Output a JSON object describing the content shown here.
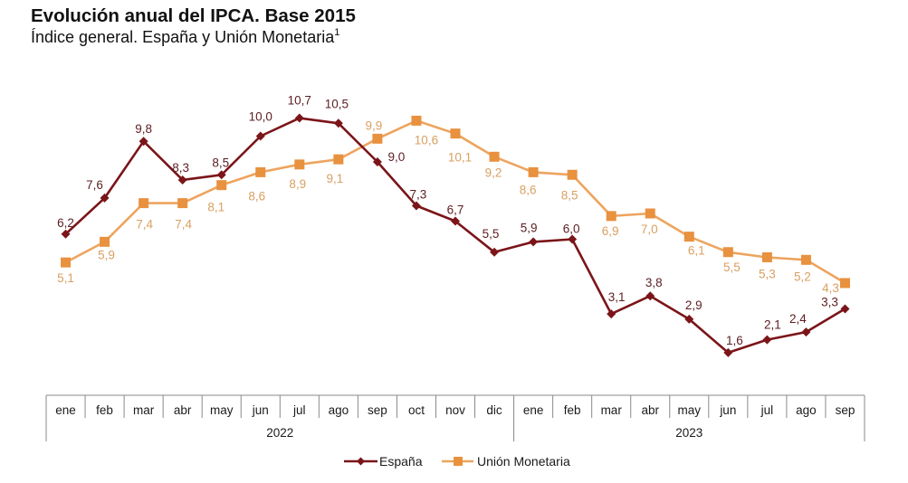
{
  "title": "Evolución anual del IPCA. Base 2015",
  "subtitle": "Índice general. España y Unión Monetaria",
  "subtitle_footnote": "1",
  "chart_data": {
    "type": "line",
    "title": "Evolución anual del IPCA. Base 2015",
    "subtitle": "Índice general. España y Unión Monetaria¹",
    "xlabel": "",
    "ylabel": "",
    "y_axis_visible": false,
    "grid": false,
    "legend": "bottom-center",
    "categories": [
      "ene",
      "feb",
      "mar",
      "abr",
      "may",
      "jun",
      "jul",
      "ago",
      "sep",
      "oct",
      "nov",
      "dic",
      "ene",
      "feb",
      "mar",
      "abr",
      "may",
      "jun",
      "jul",
      "ago",
      "sep"
    ],
    "years": [
      {
        "label": "2022",
        "months": 12
      },
      {
        "label": "2023",
        "months": 9
      }
    ],
    "series": [
      {
        "name": "España",
        "marker": "diamond",
        "color": "#7B1519",
        "label_color": "#5B1E23",
        "values": [
          6.2,
          7.6,
          9.8,
          8.3,
          8.5,
          10.0,
          10.7,
          10.5,
          9.0,
          7.3,
          6.7,
          5.5,
          5.9,
          6.0,
          3.1,
          3.8,
          2.9,
          1.6,
          2.1,
          2.4,
          3.3
        ],
        "labels": [
          "6,2",
          "7,6",
          "9,8",
          "8,3",
          "8,5",
          "10,0",
          "10,7",
          "10,5",
          "9,0",
          "7,3",
          "6,7",
          "5,5",
          "5,9",
          "6,0",
          "3,1",
          "3,8",
          "2,9",
          "1,6",
          "2,1",
          "2,4",
          "3,3"
        ]
      },
      {
        "name": "Unión Monetaria",
        "marker": "square",
        "color": "#EDA45E",
        "marker_color": "#E8913F",
        "label_color": "#D9A062",
        "values": [
          5.1,
          5.9,
          7.4,
          7.4,
          8.1,
          8.6,
          8.9,
          9.1,
          9.9,
          10.6,
          10.1,
          9.2,
          8.6,
          8.5,
          6.9,
          7.0,
          6.1,
          5.5,
          5.3,
          5.2,
          4.3
        ],
        "labels": [
          "5,1",
          "5,9",
          "7,4",
          "7,4",
          "8,1",
          "8,6",
          "8,9",
          "9,1",
          "9,9",
          "10,6",
          "10,1",
          "9,2",
          "8,6",
          "8,5",
          "6,9",
          "7,0",
          "6,1",
          "5,5",
          "5,3",
          "5,2",
          "4,3"
        ]
      }
    ]
  }
}
